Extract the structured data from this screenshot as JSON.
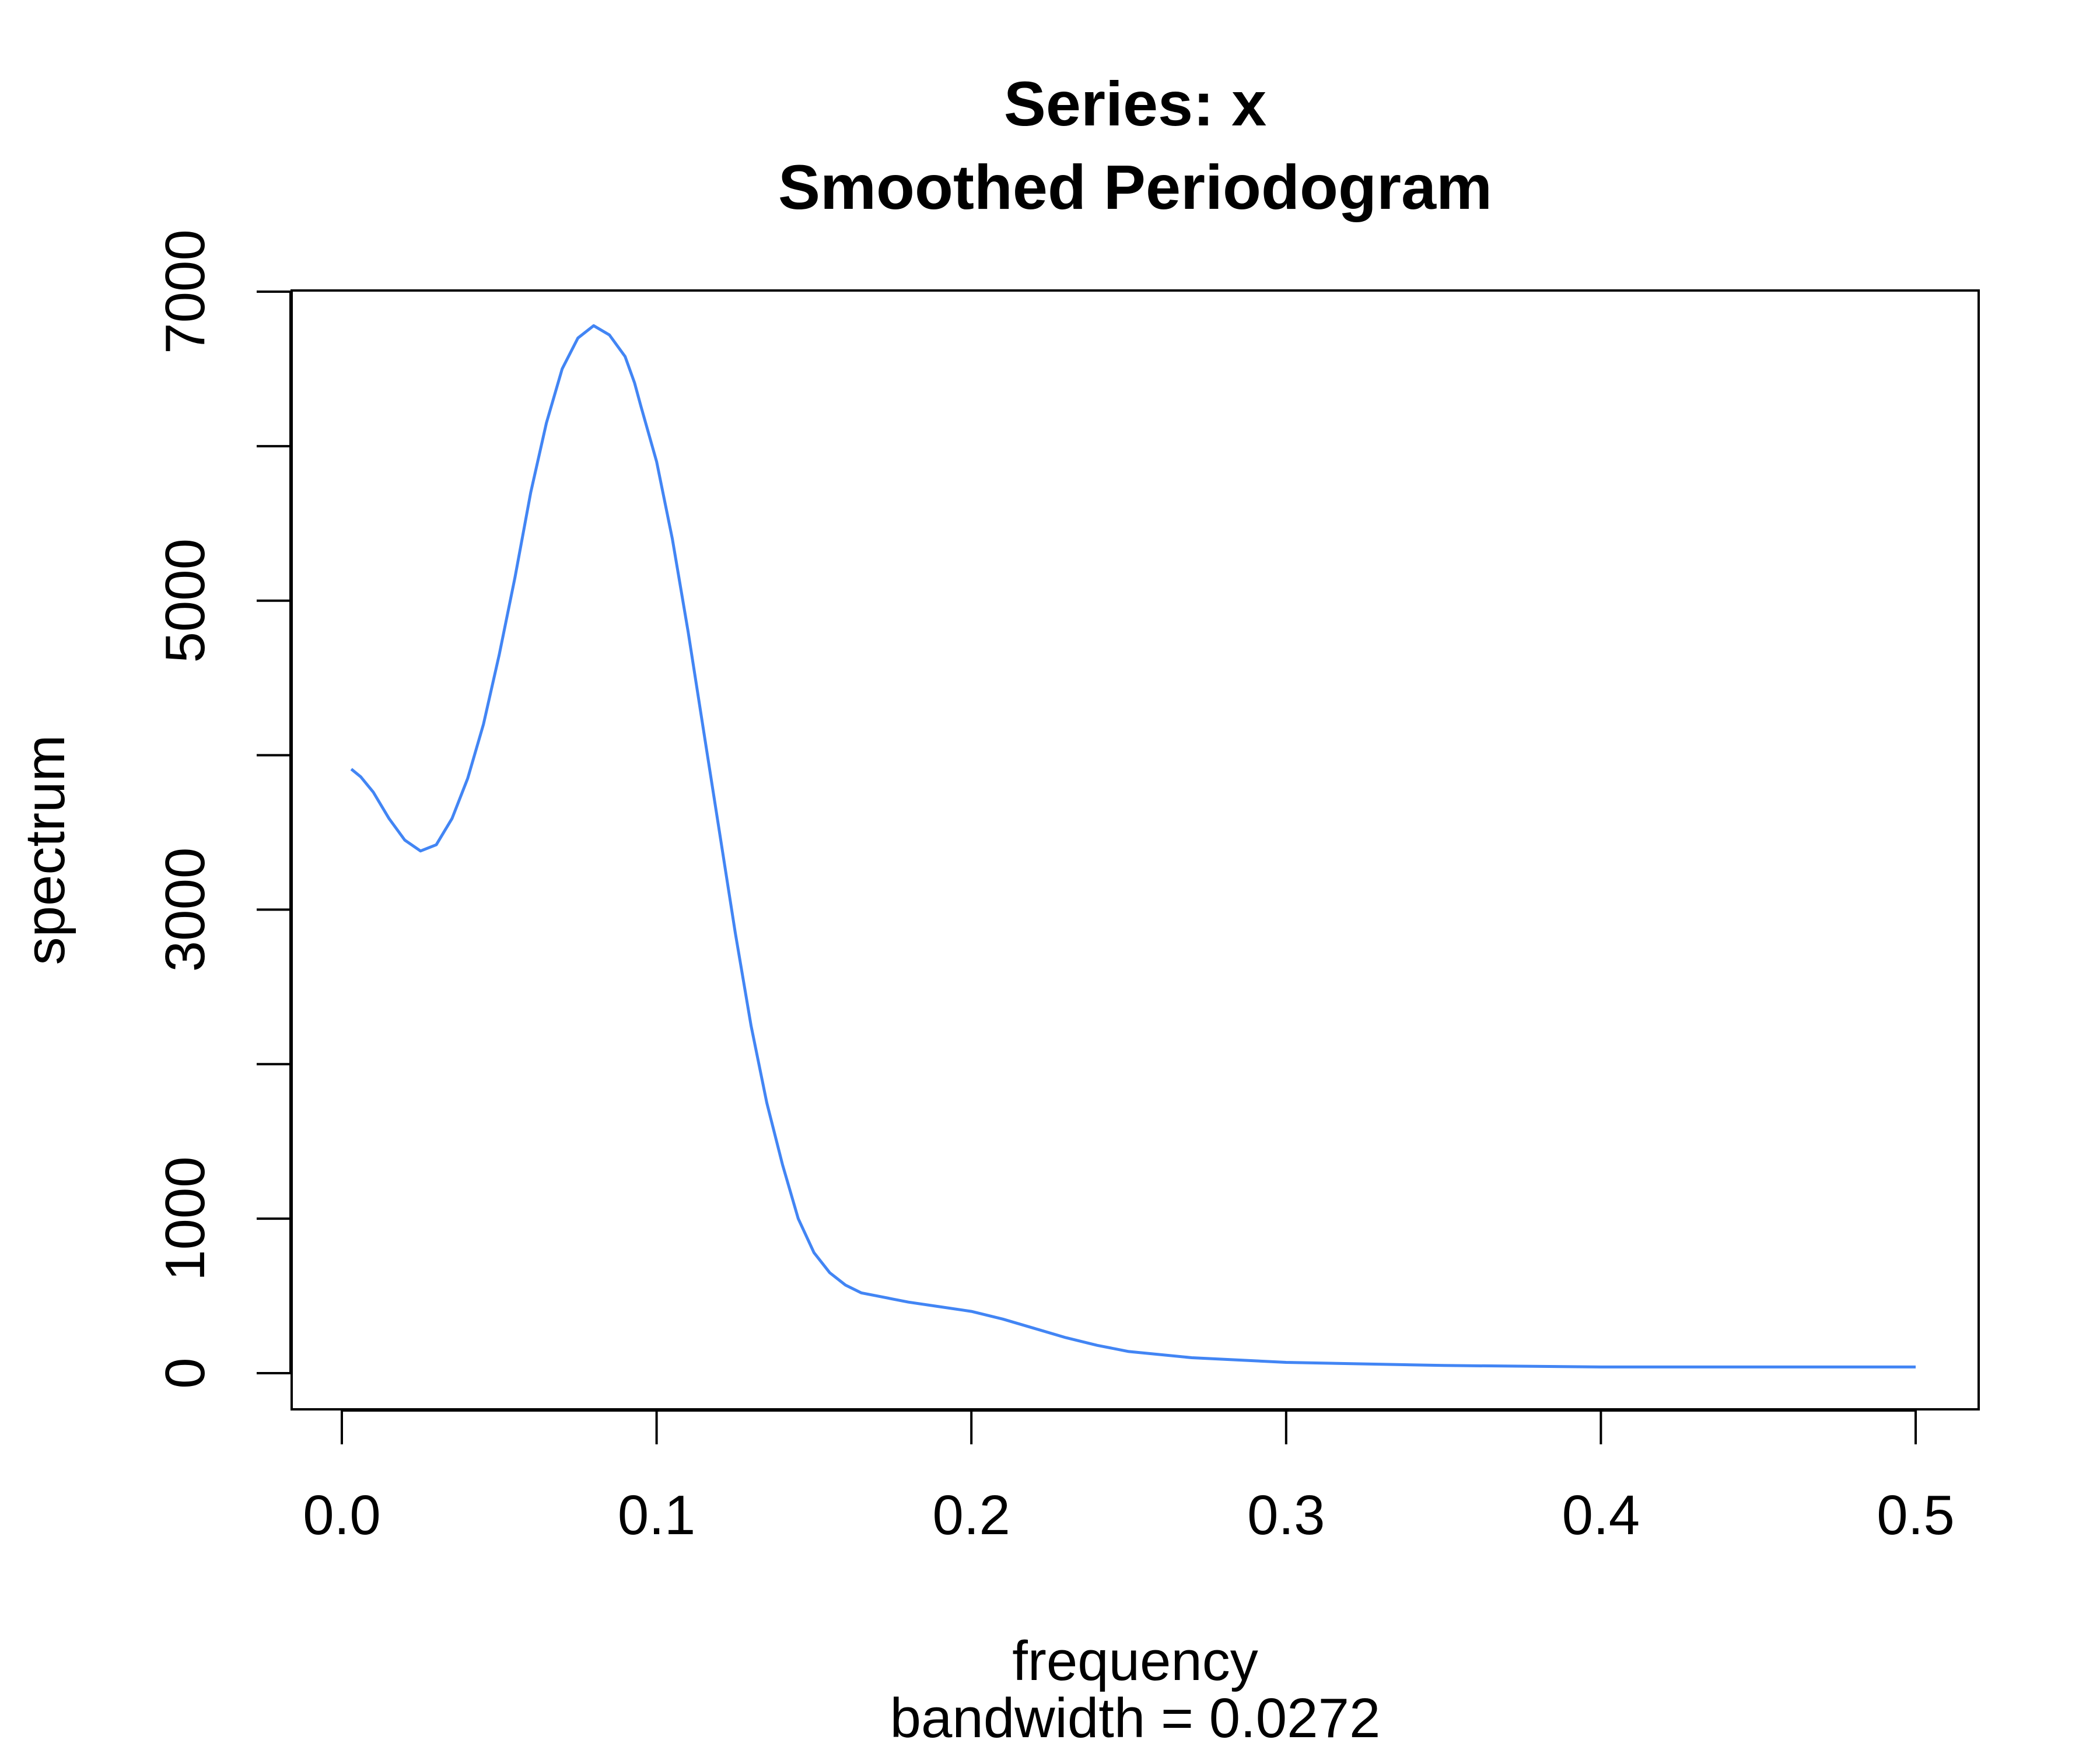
{
  "chart_data": {
    "type": "line",
    "title_lines": [
      "Series: x",
      "Smoothed Periodogram"
    ],
    "xlabel": "frequency",
    "sub": "bandwidth = 0.0272",
    "ylabel": "spectrum",
    "xlim": [
      0.0,
      0.5
    ],
    "ylim": [
      0,
      7000
    ],
    "x_ticks": [
      0.0,
      0.1,
      0.2,
      0.3,
      0.4,
      0.5
    ],
    "x_tick_labels": [
      "0.0",
      "0.1",
      "0.2",
      "0.3",
      "0.4",
      "0.5"
    ],
    "y_ticks": [
      0,
      1000,
      2000,
      3000,
      4000,
      5000,
      6000,
      7000
    ],
    "y_tick_labels": [
      "0",
      "1000",
      "",
      "3000",
      "",
      "5000",
      "",
      "7000"
    ],
    "grid": false,
    "series": [
      {
        "color": "#4285F4",
        "x": [
          0.003,
          0.006,
          0.01,
          0.015,
          0.02,
          0.025,
          0.03,
          0.035,
          0.04,
          0.045,
          0.05,
          0.055,
          0.06,
          0.065,
          0.07,
          0.075,
          0.08,
          0.085,
          0.09,
          0.093,
          0.095,
          0.1,
          0.105,
          0.11,
          0.115,
          0.12,
          0.125,
          0.13,
          0.135,
          0.14,
          0.145,
          0.15,
          0.155,
          0.16,
          0.165,
          0.17,
          0.175,
          0.18,
          0.19,
          0.2,
          0.21,
          0.22,
          0.23,
          0.24,
          0.25,
          0.27,
          0.3,
          0.35,
          0.4,
          0.45,
          0.5
        ],
        "values": [
          3910,
          3860,
          3760,
          3590,
          3450,
          3380,
          3420,
          3590,
          3850,
          4200,
          4650,
          5150,
          5700,
          6150,
          6500,
          6700,
          6780,
          6720,
          6580,
          6410,
          6260,
          5900,
          5400,
          4800,
          4150,
          3500,
          2850,
          2250,
          1750,
          1350,
          1000,
          780,
          650,
          570,
          520,
          500,
          480,
          460,
          430,
          400,
          350,
          290,
          230,
          180,
          140,
          100,
          70,
          50,
          40,
          40,
          40
        ]
      }
    ]
  }
}
